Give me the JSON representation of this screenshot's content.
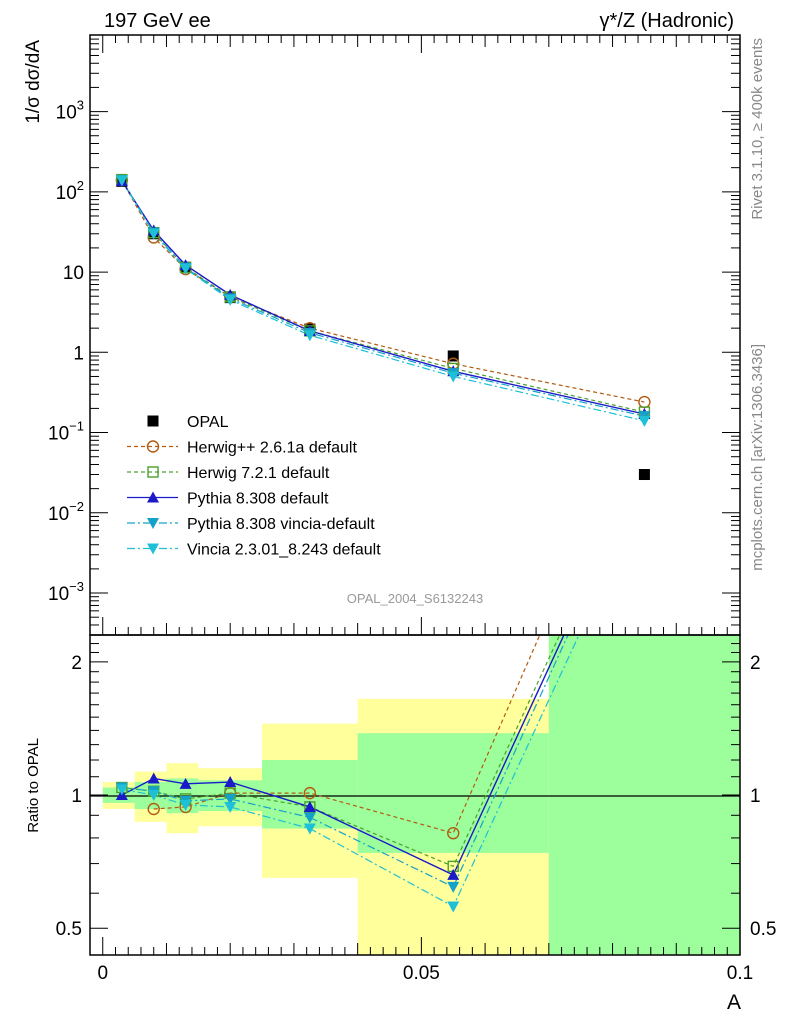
{
  "header": {
    "left": "197 GeV ee",
    "right": "γ*/Z (Hadronic)"
  },
  "side_labels": {
    "rivet": "Rivet 3.1.10, ≥ 400k events",
    "mcplots": "mcplots.cern.ch [arXiv:1306.3436]"
  },
  "analysis_id": "OPAL_2004_S6132243",
  "colors": {
    "opal": "#000000",
    "herwigpp": "#b25b12",
    "herwig7": "#4aa02c",
    "pythia": "#1a1ac8",
    "vincia_py": "#16a2c8",
    "vincia": "#1ec0d8",
    "band_inner": "#9cff9c",
    "band_outer": "#ffff9c"
  },
  "chart_data": [
    {
      "type": "line",
      "panel": "main",
      "title": "",
      "xlabel": "",
      "ylabel": "1/σ dσ/dA",
      "yscale": "log",
      "ylim": [
        0.0003,
        9000
      ],
      "xlim": [
        -0.002,
        0.1
      ],
      "y_ticks": [
        {
          "base": "10",
          "exp": "−3",
          "value": 0.001
        },
        {
          "base": "10",
          "exp": "−2",
          "value": 0.01
        },
        {
          "base": "10",
          "exp": "−1",
          "value": 0.1
        },
        {
          "base": "1",
          "exp": "",
          "value": 1
        },
        {
          "base": "10",
          "exp": "",
          "value": 10
        },
        {
          "base": "10",
          "exp": "2",
          "value": 100
        },
        {
          "base": "10",
          "exp": "3",
          "value": 1000
        }
      ],
      "legend_position": "center-left",
      "series": [
        {
          "name": "OPAL",
          "key": "opal",
          "marker": "square",
          "x": [
            0.003,
            0.008,
            0.013,
            0.02,
            0.0325,
            0.055,
            0.085
          ],
          "y": [
            135,
            30,
            11.5,
            4.8,
            1.95,
            0.9,
            0.03
          ]
        },
        {
          "name": "Herwig++ 2.6.1a default",
          "key": "herwigpp",
          "marker": "circle",
          "dash": "4,3",
          "x": [
            0.003,
            0.008,
            0.013,
            0.02,
            0.0325,
            0.055,
            0.085
          ],
          "y": [
            140,
            27,
            10.9,
            4.9,
            2.0,
            0.72,
            0.24
          ]
        },
        {
          "name": "Herwig 7.2.1 default",
          "key": "herwig7",
          "marker": "square-open",
          "dash": "4,3",
          "x": [
            0.003,
            0.008,
            0.013,
            0.02,
            0.0325,
            0.055,
            0.085
          ],
          "y": [
            142,
            31,
            11.4,
            4.9,
            1.85,
            0.63,
            0.18
          ]
        },
        {
          "name": "Pythia 8.308 default",
          "key": "pythia",
          "marker": "triangle-up",
          "dash": "",
          "x": [
            0.003,
            0.008,
            0.013,
            0.02,
            0.0325,
            0.055,
            0.085
          ],
          "y": [
            136,
            33,
            12.2,
            5.2,
            1.85,
            0.58,
            0.17
          ]
        },
        {
          "name": "Pythia 8.308 vincia-default",
          "key": "vincia_py",
          "marker": "triangle-down",
          "dash": "8,3,2,3",
          "x": [
            0.003,
            0.008,
            0.013,
            0.02,
            0.0325,
            0.055,
            0.085
          ],
          "y": [
            140,
            31,
            11.3,
            4.7,
            1.75,
            0.55,
            0.16
          ]
        },
        {
          "name": "Vincia 2.3.01_8.243 default",
          "key": "vincia",
          "marker": "triangle-down",
          "dash": "8,3,2,3",
          "x": [
            0.003,
            0.008,
            0.013,
            0.02,
            0.0325,
            0.055,
            0.085
          ],
          "y": [
            139,
            30,
            11.0,
            4.5,
            1.63,
            0.5,
            0.14
          ]
        }
      ]
    },
    {
      "type": "line",
      "panel": "ratio",
      "title": "",
      "xlabel": "A",
      "ylabel": "Ratio to OPAL",
      "yscale": "log",
      "ylim": [
        0.435,
        2.3
      ],
      "xlim": [
        -0.002,
        0.1
      ],
      "x_ticks": [
        {
          "label": "0",
          "value": 0
        },
        {
          "label": "0.05",
          "value": 0.05
        },
        {
          "label": "0.1",
          "value": 0.1
        }
      ],
      "y_ticks": [
        {
          "label": "0.5",
          "value": 0.5
        },
        {
          "label": "1",
          "value": 1
        },
        {
          "label": "2",
          "value": 2
        }
      ],
      "bands": [
        {
          "x0": 0.0,
          "x1": 0.005,
          "inner": [
            0.96,
            1.04
          ],
          "outer": [
            0.93,
            1.07
          ]
        },
        {
          "x0": 0.005,
          "x1": 0.01,
          "inner": [
            0.93,
            1.07
          ],
          "outer": [
            0.87,
            1.13
          ]
        },
        {
          "x0": 0.01,
          "x1": 0.015,
          "inner": [
            0.91,
            1.09
          ],
          "outer": [
            0.82,
            1.18
          ]
        },
        {
          "x0": 0.015,
          "x1": 0.025,
          "inner": [
            0.92,
            1.08
          ],
          "outer": [
            0.85,
            1.15
          ]
        },
        {
          "x0": 0.025,
          "x1": 0.04,
          "inner": [
            0.84,
            1.2
          ],
          "outer": [
            0.65,
            1.45
          ]
        },
        {
          "x0": 0.04,
          "x1": 0.07,
          "inner": [
            0.74,
            1.38
          ],
          "outer": [
            0.435,
            1.65
          ]
        },
        {
          "x0": 0.07,
          "x1": 0.1,
          "inner": [
            0.435,
            2.3
          ],
          "outer": [
            0.435,
            2.3
          ]
        }
      ],
      "series": [
        {
          "name": "Herwig++ 2.6.1a default",
          "key": "herwigpp",
          "marker": "circle",
          "x": [
            0.008,
            0.013,
            0.02,
            0.0325,
            0.055,
            0.085
          ],
          "y": [
            0.93,
            0.94,
            1.01,
            1.01,
            0.82,
            8.0
          ]
        },
        {
          "name": "Herwig 7.2.1 default",
          "key": "herwig7",
          "marker": "square-open",
          "x": [
            0.003,
            0.008,
            0.013,
            0.02,
            0.0325,
            0.055,
            0.085
          ],
          "y": [
            1.04,
            1.02,
            0.98,
            1.01,
            0.94,
            0.69,
            6.0
          ]
        },
        {
          "name": "Pythia 8.308 default",
          "key": "pythia",
          "marker": "triangle-up",
          "x": [
            0.003,
            0.008,
            0.013,
            0.02,
            0.0325,
            0.055,
            0.085
          ],
          "y": [
            1.0,
            1.09,
            1.06,
            1.07,
            0.94,
            0.66,
            5.7
          ]
        },
        {
          "name": "Pythia 8.308 vincia-default",
          "key": "vincia_py",
          "marker": "triangle-down",
          "x": [
            0.003,
            0.008,
            0.013,
            0.02,
            0.0325,
            0.055,
            0.085
          ],
          "y": [
            1.04,
            1.02,
            0.97,
            0.98,
            0.89,
            0.62,
            5.5
          ]
        },
        {
          "name": "Vincia 2.3.01_8.243 default",
          "key": "vincia",
          "marker": "triangle-down",
          "x": [
            0.003,
            0.008,
            0.013,
            0.02,
            0.0325,
            0.055,
            0.085
          ],
          "y": [
            1.03,
            1.0,
            0.95,
            0.94,
            0.84,
            0.56,
            4.8
          ]
        }
      ]
    }
  ]
}
